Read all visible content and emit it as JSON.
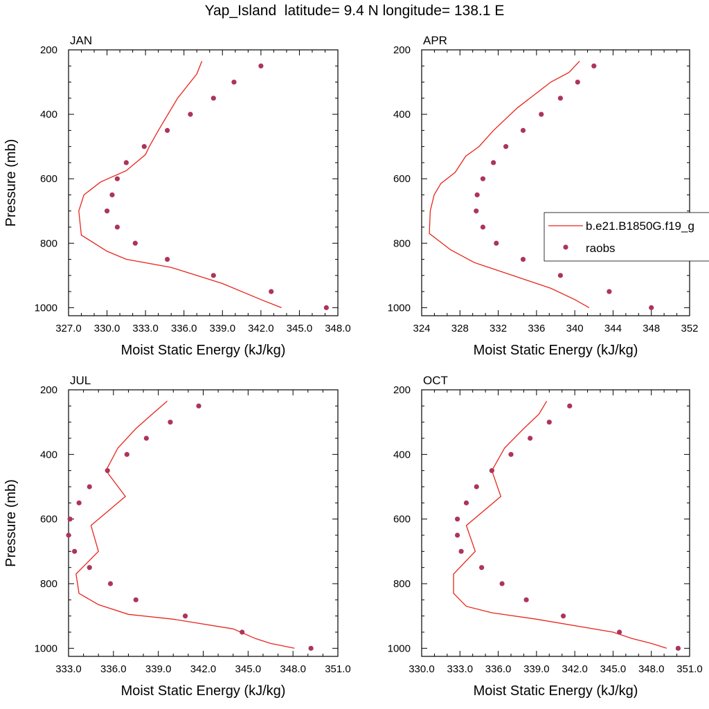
{
  "title": "Yap_Island  latitude= 9.4 N longitude= 138.1 E",
  "colors": {
    "model_line": "#e8241c",
    "obs_marker": "#ad3559",
    "axis": "#000000"
  },
  "legend": {
    "placement": "right-middle (APR panel)",
    "entries": [
      {
        "label": "b.e21.B1850G.f19_g",
        "style": "line"
      },
      {
        "label": "raobs",
        "style": "marker"
      }
    ]
  },
  "chart_data": [
    {
      "type": "line",
      "panel_label": "JAN",
      "xlabel": "Moist Static Energy (kJ/kg)",
      "ylabel": "Pressure (mb)",
      "xlim": [
        327.0,
        348.0
      ],
      "ylim": [
        1025,
        200
      ],
      "y_reversed": true,
      "xticks": [
        "327.0",
        "330.0",
        "333.0",
        "336.0",
        "339.0",
        "342.0",
        "345.0",
        "348.0"
      ],
      "yticks": [
        "200",
        "400",
        "600",
        "800",
        "1000"
      ],
      "grid": false,
      "series": [
        {
          "name": "b.e21.B1850G.f19_g",
          "style": "line",
          "x": [
            343.6,
            342.0,
            339.0,
            335.0,
            331.5,
            330.0,
            328.0,
            327.8,
            328.2,
            329.5,
            331.5,
            333.0,
            333.3,
            334.0,
            335.5,
            337.0,
            337.4
          ],
          "y": [
            1000,
            975,
            925,
            875,
            850,
            825,
            775,
            700,
            650,
            610,
            575,
            525,
            500,
            450,
            350,
            275,
            235
          ]
        },
        {
          "name": "raobs",
          "style": "marker",
          "x": [
            347.1,
            342.8,
            338.3,
            334.7,
            332.2,
            330.8,
            330.0,
            330.4,
            330.8,
            331.5,
            332.9,
            334.7,
            336.5,
            338.3,
            339.9,
            342.0
          ],
          "y": [
            1000,
            950,
            900,
            850,
            800,
            750,
            700,
            650,
            600,
            550,
            500,
            450,
            400,
            350,
            300,
            250
          ]
        }
      ]
    },
    {
      "type": "line",
      "panel_label": "APR",
      "xlabel": "Moist Static Energy (kJ/kg)",
      "ylabel": "",
      "xlim": [
        324,
        352
      ],
      "ylim": [
        1025,
        200
      ],
      "y_reversed": true,
      "xticks": [
        "324",
        "328",
        "332",
        "336",
        "340",
        "344",
        "348",
        "352"
      ],
      "yticks": [
        "200",
        "400",
        "600",
        "800",
        "1000"
      ],
      "grid": false,
      "series": [
        {
          "name": "b.e21.B1850G.f19_g",
          "style": "line",
          "x": [
            341.5,
            340.0,
            337.5,
            333.5,
            329.5,
            327.0,
            324.8,
            324.9,
            325.3,
            326.0,
            327.5,
            328.6,
            330.0,
            331.5,
            334.0,
            337.5,
            339.4,
            340.5
          ],
          "y": [
            1000,
            975,
            940,
            900,
            860,
            820,
            770,
            700,
            650,
            615,
            580,
            530,
            500,
            450,
            380,
            300,
            270,
            235
          ]
        },
        {
          "name": "raobs",
          "style": "marker",
          "x": [
            348.0,
            343.6,
            338.5,
            334.6,
            331.8,
            330.4,
            329.7,
            329.8,
            330.4,
            331.5,
            332.8,
            334.6,
            336.5,
            338.5,
            340.3,
            342.0
          ],
          "y": [
            1000,
            950,
            900,
            850,
            800,
            750,
            700,
            650,
            600,
            550,
            500,
            450,
            400,
            350,
            300,
            250
          ]
        }
      ]
    },
    {
      "type": "line",
      "panel_label": "JUL",
      "xlabel": "Moist Static Energy (kJ/kg)",
      "ylabel": "Pressure (mb)",
      "xlim": [
        333.0,
        351.0
      ],
      "ylim": [
        1025,
        200
      ],
      "y_reversed": true,
      "xticks": [
        "333.0",
        "336.0",
        "339.0",
        "342.0",
        "345.0",
        "348.0",
        "351.0"
      ],
      "yticks": [
        "200",
        "400",
        "600",
        "800",
        "1000"
      ],
      "grid": false,
      "series": [
        {
          "name": "b.e21.B1850G.f19_g",
          "style": "line",
          "x": [
            348.1,
            346.5,
            345.5,
            344.0,
            340.0,
            337.0,
            335.0,
            333.7,
            333.5,
            335.0,
            334.5,
            336.8,
            335.5,
            336.3,
            337.5,
            338.6,
            339.6
          ],
          "y": [
            1000,
            985,
            970,
            940,
            910,
            895,
            865,
            830,
            770,
            700,
            620,
            530,
            450,
            380,
            320,
            275,
            235
          ]
        },
        {
          "name": "raobs",
          "style": "marker",
          "x": [
            349.2,
            344.6,
            340.8,
            337.5,
            335.8,
            334.4,
            333.4,
            333.0,
            333.1,
            333.7,
            334.4,
            335.6,
            336.9,
            338.2,
            339.8,
            341.7
          ],
          "y": [
            1000,
            950,
            900,
            850,
            800,
            750,
            700,
            650,
            600,
            550,
            500,
            450,
            400,
            350,
            300,
            250
          ]
        }
      ]
    },
    {
      "type": "line",
      "panel_label": "OCT",
      "xlabel": "Moist Static Energy (kJ/kg)",
      "ylabel": "",
      "xlim": [
        330.0,
        351.0
      ],
      "ylim": [
        1025,
        200
      ],
      "y_reversed": true,
      "xticks": [
        "330.0",
        "333.0",
        "336.0",
        "339.0",
        "342.0",
        "345.0",
        "348.0",
        "351.0"
      ],
      "yticks": [
        "200",
        "400",
        "600",
        "800",
        "1000"
      ],
      "grid": false,
      "series": [
        {
          "name": "b.e21.B1850G.f19_g",
          "style": "line",
          "x": [
            349.2,
            348.0,
            346.5,
            345.0,
            339.0,
            335.5,
            333.5,
            332.5,
            332.5,
            334.2,
            333.5,
            336.2,
            335.5,
            336.5,
            338.0,
            339.2,
            339.8
          ],
          "y": [
            1000,
            985,
            970,
            950,
            910,
            890,
            870,
            830,
            770,
            700,
            620,
            530,
            450,
            380,
            320,
            275,
            235
          ]
        },
        {
          "name": "raobs",
          "style": "marker",
          "x": [
            350.1,
            345.5,
            341.1,
            338.2,
            336.3,
            334.7,
            333.1,
            332.8,
            332.8,
            333.5,
            334.3,
            335.5,
            337.0,
            338.5,
            340.0,
            341.6
          ],
          "y": [
            1000,
            950,
            900,
            850,
            800,
            750,
            700,
            650,
            600,
            550,
            500,
            450,
            400,
            350,
            300,
            250
          ]
        }
      ]
    }
  ]
}
